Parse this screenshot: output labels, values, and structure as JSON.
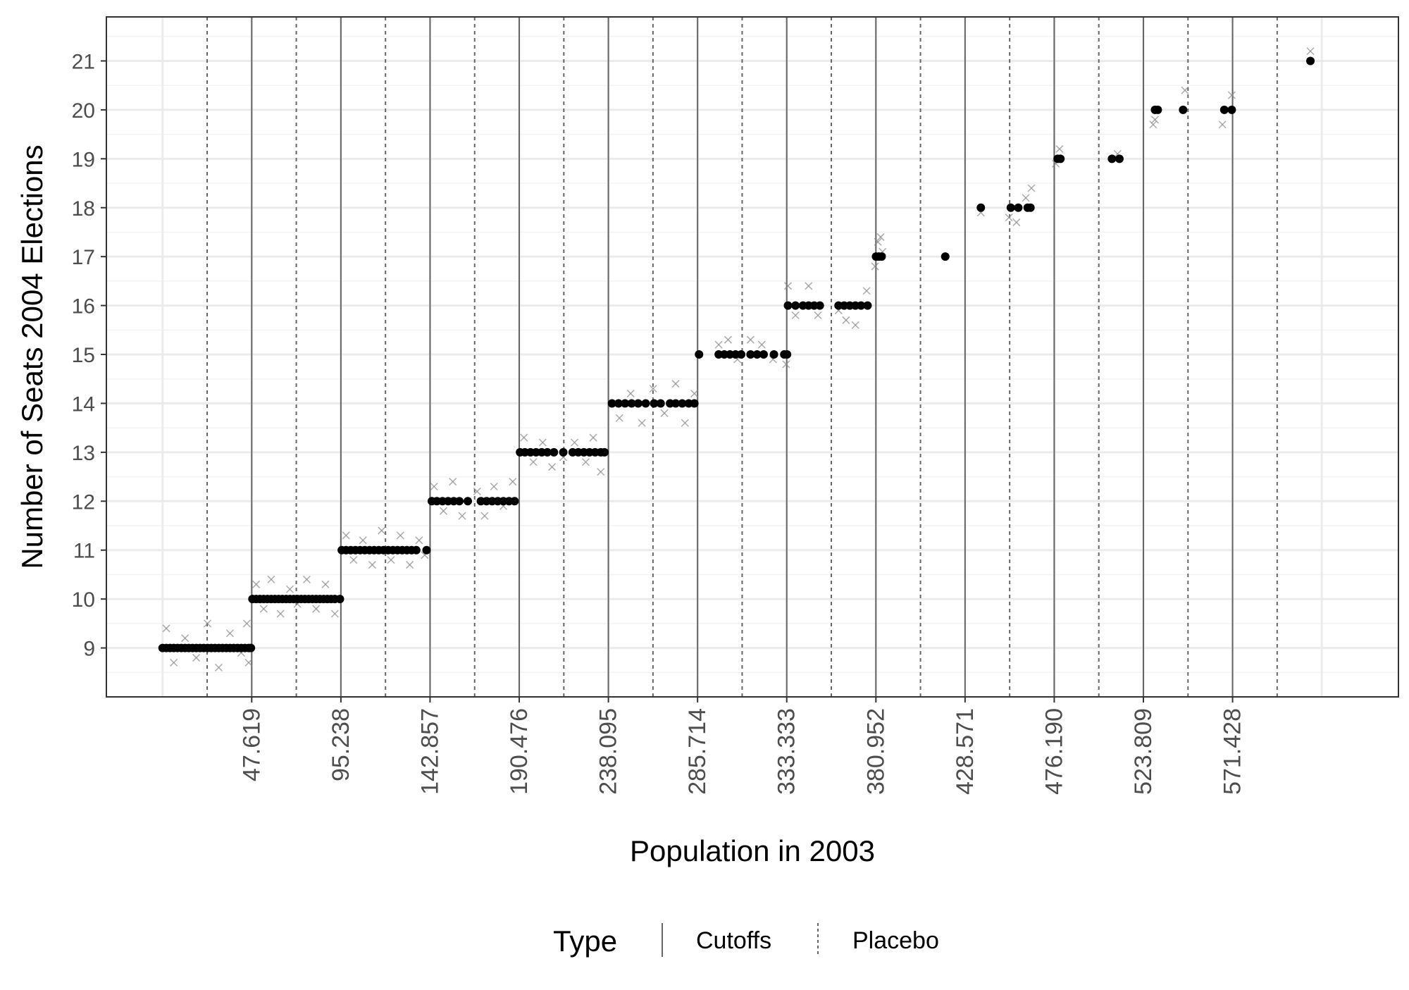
{
  "chart_data": {
    "type": "scatter",
    "xlabel": "Population in 2003",
    "ylabel": "Number of Seats 2004 Elections",
    "xlim": [
      -30000,
      660000
    ],
    "ylim": [
      8.0,
      21.9
    ],
    "x_ticks": [
      47619,
      95238,
      142857,
      190476,
      238095,
      285714,
      333333,
      380952,
      428571,
      476190,
      523809,
      571428
    ],
    "x_tick_labels": [
      "47.619",
      "95.238",
      "142.857",
      "190.476",
      "238.095",
      "285.714",
      "333.333",
      "380.952",
      "428.571",
      "476.190",
      "523.809",
      "571.428"
    ],
    "y_ticks": [
      9,
      10,
      11,
      12,
      13,
      14,
      15,
      16,
      17,
      18,
      19,
      20,
      21
    ],
    "y_tick_labels": [
      "9",
      "10",
      "11",
      "12",
      "13",
      "14",
      "15",
      "16",
      "17",
      "18",
      "19",
      "20",
      "21"
    ],
    "grid": true,
    "legend": {
      "title": "Type",
      "position": "bottom",
      "entries": [
        {
          "label": "Cutoffs",
          "linetype": "solid"
        },
        {
          "label": "Placebo",
          "linetype": "dashed"
        }
      ]
    },
    "cutoffs": [
      47619,
      95238,
      142857,
      190476,
      238095,
      285714,
      333333,
      380952,
      428571,
      476190,
      523809,
      571428
    ],
    "placebo": [
      23810,
      71429,
      119048,
      166667,
      214286,
      261905,
      309524,
      357143,
      404762,
      452381,
      500000,
      547619,
      595238
    ],
    "series": [
      {
        "marker": "dot",
        "color": "#000000",
        "points": [
          {
            "x": [
              0,
              47619
            ],
            "y": 9
          },
          {
            "x": [
              47619,
              95238
            ],
            "y": 10
          },
          {
            "x": [
              95238,
              142857
            ],
            "y": 11
          },
          {
            "x": [
              142857,
              190476
            ],
            "y": 12
          },
          {
            "x": [
              190476,
              238095
            ],
            "y": 13
          },
          {
            "x": [
              238095,
              285714
            ],
            "y": 14
          },
          {
            "x": [
              285714,
              333333
            ],
            "y": 15
          },
          {
            "x": [
              333333,
              380952
            ],
            "y": 16
          },
          {
            "x": [
              380952,
              428571
            ],
            "y": 17
          },
          {
            "x": [
              428571,
              476190
            ],
            "y": 18
          },
          {
            "x": [
              476190,
              523809
            ],
            "y": 19
          },
          {
            "x": [
              523809,
              571428
            ],
            "y": 20
          },
          {
            "x": [
              571428,
              640000
            ],
            "y": 21
          }
        ],
        "values": [
          [
            0,
            9
          ],
          [
            2000,
            9
          ],
          [
            4000,
            9
          ],
          [
            6000,
            9
          ],
          [
            8000,
            9
          ],
          [
            10000,
            9
          ],
          [
            12000,
            9
          ],
          [
            14000,
            9
          ],
          [
            16000,
            9
          ],
          [
            18000,
            9
          ],
          [
            20000,
            9
          ],
          [
            22000,
            9
          ],
          [
            24000,
            9
          ],
          [
            26000,
            9
          ],
          [
            28000,
            9
          ],
          [
            30000,
            9
          ],
          [
            32000,
            9
          ],
          [
            34000,
            9
          ],
          [
            36000,
            9
          ],
          [
            38000,
            9
          ],
          [
            40000,
            9
          ],
          [
            42000,
            9
          ],
          [
            44000,
            9
          ],
          [
            46000,
            9
          ],
          [
            47200,
            9
          ],
          [
            48000,
            10
          ],
          [
            50000,
            10
          ],
          [
            52000,
            10
          ],
          [
            54000,
            10
          ],
          [
            56000,
            10
          ],
          [
            58000,
            10
          ],
          [
            60000,
            10
          ],
          [
            62000,
            10
          ],
          [
            64000,
            10
          ],
          [
            66000,
            10
          ],
          [
            68000,
            10
          ],
          [
            70000,
            10
          ],
          [
            72000,
            10
          ],
          [
            74000,
            10
          ],
          [
            76000,
            10
          ],
          [
            78000,
            10
          ],
          [
            80000,
            10
          ],
          [
            82000,
            10
          ],
          [
            84000,
            10
          ],
          [
            86000,
            10
          ],
          [
            88000,
            10
          ],
          [
            90000,
            10
          ],
          [
            92000,
            10
          ],
          [
            94700,
            10
          ],
          [
            95700,
            11
          ],
          [
            98000,
            11
          ],
          [
            100500,
            11
          ],
          [
            103000,
            11
          ],
          [
            105500,
            11
          ],
          [
            108000,
            11
          ],
          [
            110500,
            11
          ],
          [
            113000,
            11
          ],
          [
            115500,
            11
          ],
          [
            118000,
            11
          ],
          [
            120500,
            11
          ],
          [
            123000,
            11
          ],
          [
            125500,
            11
          ],
          [
            128000,
            11
          ],
          [
            130500,
            11
          ],
          [
            133000,
            11
          ],
          [
            135500,
            11
          ],
          [
            141000,
            11
          ],
          [
            143800,
            12
          ],
          [
            146500,
            12
          ],
          [
            149500,
            12
          ],
          [
            152500,
            12
          ],
          [
            155500,
            12
          ],
          [
            158500,
            12
          ],
          [
            163000,
            12
          ],
          [
            170000,
            12
          ],
          [
            173000,
            12
          ],
          [
            176000,
            12
          ],
          [
            179000,
            12
          ],
          [
            182000,
            12
          ],
          [
            185000,
            12
          ],
          [
            188000,
            12
          ],
          [
            190900,
            13
          ],
          [
            193500,
            13
          ],
          [
            196500,
            13
          ],
          [
            199500,
            13
          ],
          [
            202500,
            13
          ],
          [
            205500,
            13
          ],
          [
            209000,
            13
          ],
          [
            214000,
            13
          ],
          [
            219000,
            13
          ],
          [
            222000,
            13
          ],
          [
            225000,
            13
          ],
          [
            228000,
            13
          ],
          [
            231000,
            13
          ],
          [
            234000,
            13
          ],
          [
            236000,
            13
          ],
          [
            240000,
            14
          ],
          [
            243500,
            14
          ],
          [
            247000,
            14
          ],
          [
            250500,
            14
          ],
          [
            254000,
            14
          ],
          [
            258000,
            14
          ],
          [
            262500,
            14
          ],
          [
            266000,
            14
          ],
          [
            271000,
            14
          ],
          [
            274000,
            14
          ],
          [
            277500,
            14
          ],
          [
            281000,
            14
          ],
          [
            284000,
            14
          ],
          [
            286500,
            15
          ],
          [
            297000,
            15
          ],
          [
            300000,
            15
          ],
          [
            303000,
            15
          ],
          [
            306000,
            15
          ],
          [
            309000,
            15
          ],
          [
            314000,
            15
          ],
          [
            317500,
            15
          ],
          [
            321000,
            15
          ],
          [
            326500,
            15
          ],
          [
            332000,
            15
          ],
          [
            333500,
            15
          ],
          [
            334000,
            16
          ],
          [
            338000,
            16
          ],
          [
            342000,
            16
          ],
          [
            345000,
            16
          ],
          [
            348000,
            16
          ],
          [
            351000,
            16
          ],
          [
            361000,
            16
          ],
          [
            364000,
            16
          ],
          [
            367000,
            16
          ],
          [
            370000,
            16
          ],
          [
            373000,
            16
          ],
          [
            376500,
            16
          ],
          [
            381000,
            17
          ],
          [
            382500,
            17
          ],
          [
            384000,
            17
          ],
          [
            418000,
            17
          ],
          [
            437000,
            18
          ],
          [
            453000,
            18
          ],
          [
            457000,
            18
          ],
          [
            462000,
            18
          ],
          [
            463500,
            18
          ],
          [
            478000,
            19
          ],
          [
            479500,
            19
          ],
          [
            507000,
            19
          ],
          [
            511000,
            19
          ],
          [
            530000,
            20
          ],
          [
            531500,
            20
          ],
          [
            545000,
            20
          ],
          [
            567000,
            20
          ],
          [
            571000,
            20
          ],
          [
            613000,
            21
          ]
        ]
      },
      {
        "marker": "x",
        "color": "#888888",
        "values": [
          [
            2000,
            9.4
          ],
          [
            6000,
            8.7
          ],
          [
            12000,
            9.2
          ],
          [
            18000,
            8.8
          ],
          [
            24000,
            9.5
          ],
          [
            30000,
            8.6
          ],
          [
            36000,
            9.3
          ],
          [
            42000,
            8.9
          ],
          [
            45000,
            9.5
          ],
          [
            46000,
            8.7
          ],
          [
            50000,
            10.3
          ],
          [
            54000,
            9.8
          ],
          [
            58000,
            10.4
          ],
          [
            63000,
            9.7
          ],
          [
            68000,
            10.2
          ],
          [
            72000,
            9.9
          ],
          [
            77000,
            10.4
          ],
          [
            82000,
            9.8
          ],
          [
            87000,
            10.3
          ],
          [
            92000,
            9.7
          ],
          [
            98000,
            11.3
          ],
          [
            102000,
            10.8
          ],
          [
            107000,
            11.2
          ],
          [
            112000,
            10.7
          ],
          [
            117000,
            11.4
          ],
          [
            122000,
            10.8
          ],
          [
            127000,
            11.3
          ],
          [
            132000,
            10.7
          ],
          [
            137000,
            11.2
          ],
          [
            140000,
            10.9
          ],
          [
            145000,
            12.3
          ],
          [
            150000,
            11.8
          ],
          [
            155000,
            12.4
          ],
          [
            160000,
            11.7
          ],
          [
            168000,
            12.2
          ],
          [
            172000,
            11.7
          ],
          [
            177000,
            12.3
          ],
          [
            182000,
            11.9
          ],
          [
            187000,
            12.4
          ],
          [
            193000,
            13.3
          ],
          [
            198000,
            12.8
          ],
          [
            203000,
            13.2
          ],
          [
            208000,
            12.7
          ],
          [
            214000,
            12.9
          ],
          [
            220000,
            13.2
          ],
          [
            226000,
            12.8
          ],
          [
            230000,
            13.3
          ],
          [
            234000,
            12.6
          ],
          [
            244000,
            13.7
          ],
          [
            250000,
            14.2
          ],
          [
            256000,
            13.6
          ],
          [
            262000,
            14.3
          ],
          [
            268000,
            13.8
          ],
          [
            274000,
            14.4
          ],
          [
            279000,
            13.6
          ],
          [
            284000,
            14.2
          ],
          [
            297000,
            15.2
          ],
          [
            302000,
            15.3
          ],
          [
            307000,
            14.9
          ],
          [
            314000,
            15.3
          ],
          [
            320000,
            15.2
          ],
          [
            326000,
            14.9
          ],
          [
            333000,
            14.8
          ],
          [
            334000,
            16.4
          ],
          [
            338000,
            15.8
          ],
          [
            345000,
            16.4
          ],
          [
            350000,
            15.8
          ],
          [
            361000,
            15.9
          ],
          [
            365000,
            15.7
          ],
          [
            370000,
            15.6
          ],
          [
            376000,
            16.3
          ],
          [
            380500,
            16.8
          ],
          [
            382000,
            17.3
          ],
          [
            383500,
            17.4
          ],
          [
            384500,
            17.1
          ],
          [
            437000,
            17.9
          ],
          [
            452000,
            17.8
          ],
          [
            456000,
            17.7
          ],
          [
            461000,
            18.2
          ],
          [
            464000,
            18.4
          ],
          [
            477000,
            18.9
          ],
          [
            479000,
            19.2
          ],
          [
            510000,
            19.1
          ],
          [
            529000,
            19.7
          ],
          [
            530000,
            19.8
          ],
          [
            546000,
            20.4
          ],
          [
            566000,
            19.7
          ],
          [
            571000,
            20.3
          ],
          [
            613000,
            21.2
          ]
        ]
      }
    ]
  }
}
